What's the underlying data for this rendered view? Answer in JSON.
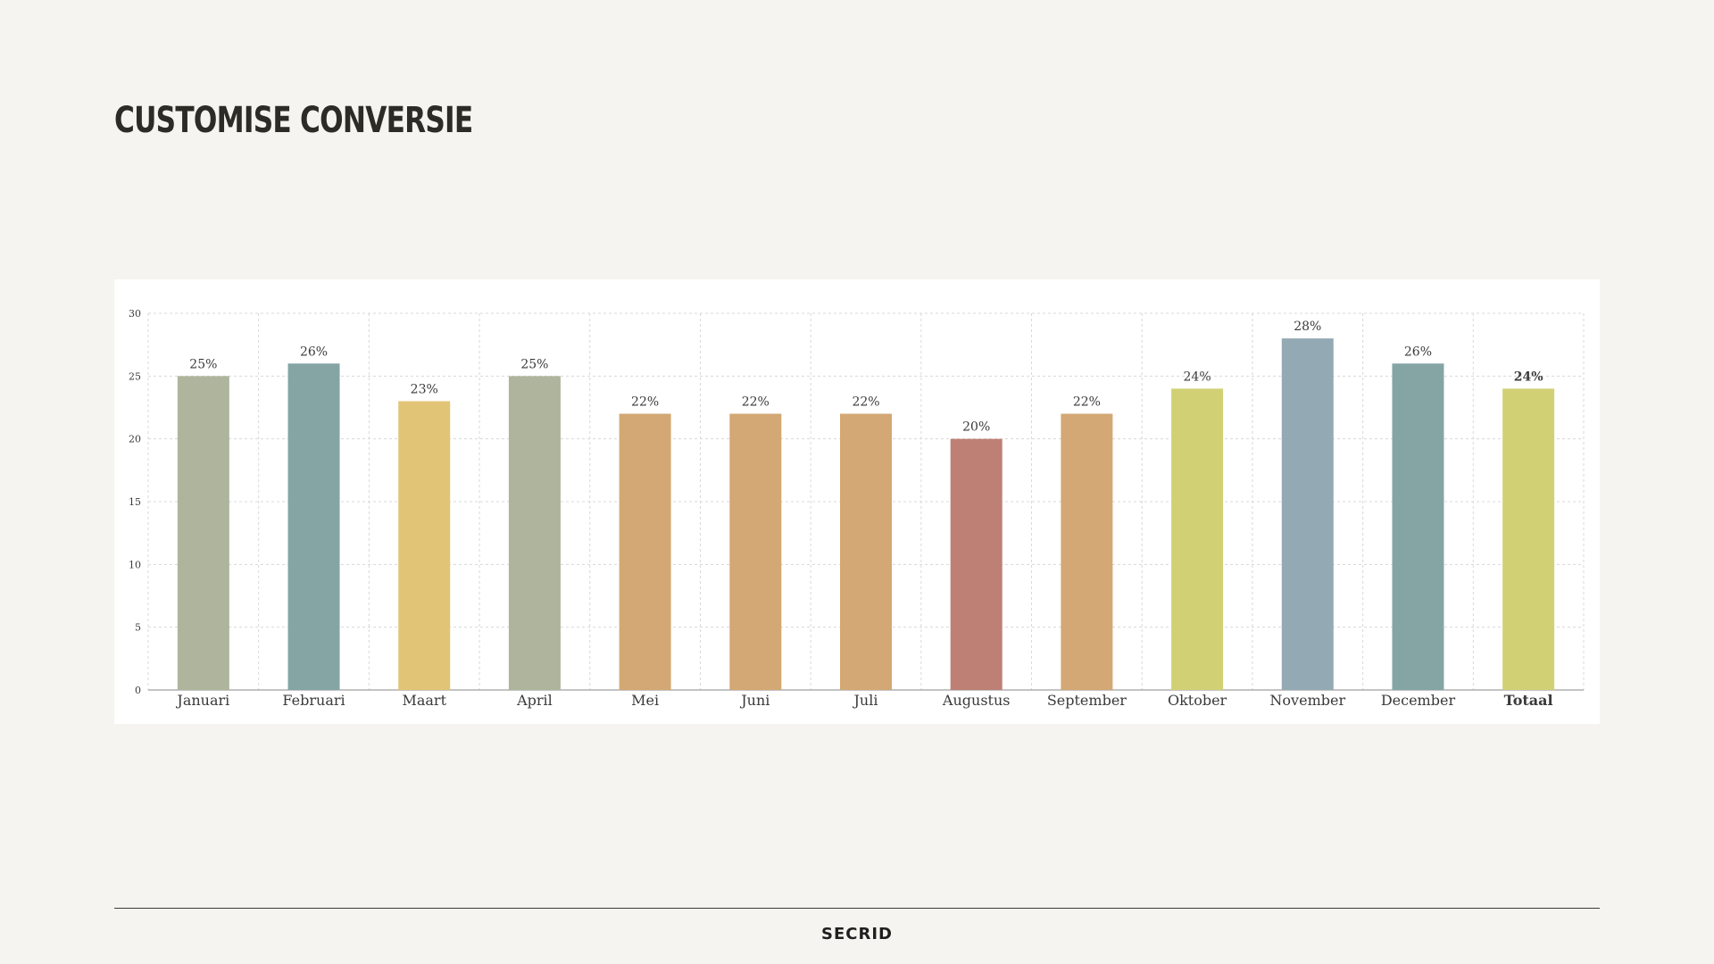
{
  "page": {
    "title": "CUSTOMISE CONVERSIE",
    "brand": "SECRID"
  },
  "chart_data": {
    "type": "bar",
    "categories": [
      "Januari",
      "Februari",
      "Maart",
      "April",
      "Mei",
      "Juni",
      "Juli",
      "Augustus",
      "September",
      "Oktober",
      "November",
      "December",
      "Totaal"
    ],
    "values": [
      25,
      26,
      23,
      25,
      22,
      22,
      22,
      20,
      22,
      24,
      28,
      26,
      24
    ],
    "value_labels": [
      "25%",
      "26%",
      "23%",
      "25%",
      "22%",
      "22%",
      "22%",
      "20%",
      "22%",
      "24%",
      "28%",
      "26%",
      "24%"
    ],
    "colors": [
      "#aeb59c",
      "#85a5a5",
      "#e2c476",
      "#aeb59c",
      "#d3a874",
      "#d3a874",
      "#d3a874",
      "#be8075",
      "#d3a874",
      "#d2d075",
      "#93aab5",
      "#85a5a5",
      "#d2d075"
    ],
    "bold_categories": [
      "Totaal"
    ],
    "ylim": [
      0,
      30
    ],
    "yticks": [
      0,
      5,
      10,
      15,
      20,
      25,
      30
    ],
    "grid": true,
    "legend": "none",
    "xlabel": "",
    "ylabel": ""
  }
}
